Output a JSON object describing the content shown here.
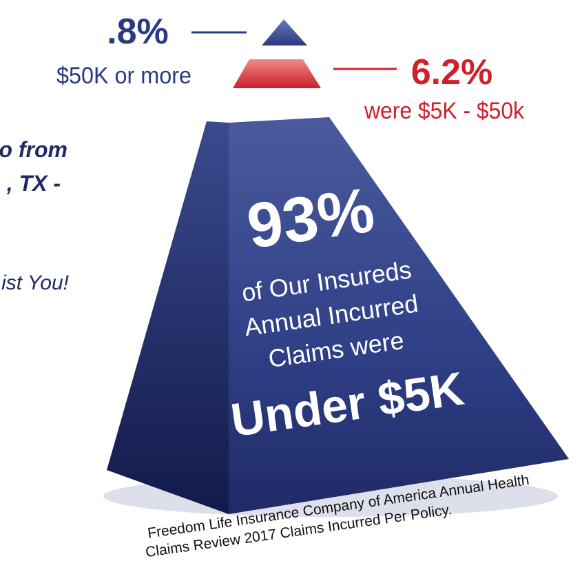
{
  "top_tier": {
    "percent": ".8%",
    "label": "$50K or more"
  },
  "middle_tier": {
    "percent": "6.2%",
    "label": "were $5K - $50k"
  },
  "base_tier": {
    "percent": "93%",
    "lines": [
      "of Our Insureds",
      "Annual Incurred",
      "Claims were"
    ],
    "highlight": "Under $5K"
  },
  "side_text": [
    "o from",
    ", TX -",
    "ist You!"
  ],
  "footnote": [
    "Freedom Life Insurance Company of America Annual Health",
    "Claims Review 2017 Claims Incurred Per Policy."
  ]
}
